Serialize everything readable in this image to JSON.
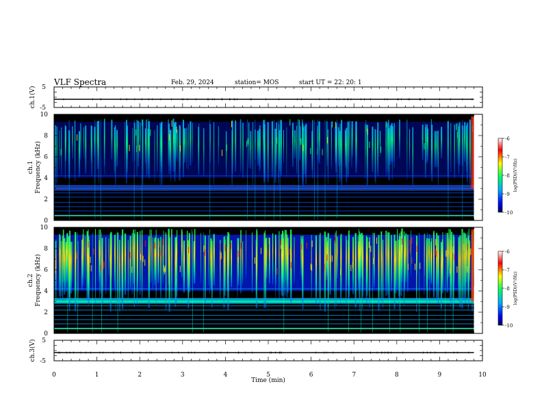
{
  "header": {
    "title": "VLF Spectra",
    "date": "Feb. 29, 2024",
    "station": "station= MOS",
    "start": "start  UT =   22: 20: 1"
  },
  "chart_data": [
    {
      "type": "line",
      "panel": "ch1-voltage",
      "ylabel": "ch.1(V)",
      "ylim": [
        -5,
        5
      ],
      "yticks": [
        "5",
        "-5"
      ],
      "xlim": [
        0,
        10
      ],
      "series": [
        {
          "x": [
            0,
            9.8
          ],
          "values": [
            0,
            0
          ]
        }
      ]
    },
    {
      "type": "heatmap",
      "panel": "ch1-spectrogram",
      "ylabel": "ch.1 Frequency (kHz)",
      "ylim": [
        0,
        10
      ],
      "yticks": [
        "0",
        "2",
        "4",
        "6",
        "8",
        "10"
      ],
      "xlim": [
        0,
        10
      ],
      "data_extent_min": 9.8,
      "colorbar": {
        "label": "log(PSD)(V²/Hz)",
        "range": [
          -10,
          -6
        ],
        "ticks": [
          "-6",
          "-7",
          "-8",
          "-9",
          "-10"
        ]
      }
    },
    {
      "type": "heatmap",
      "panel": "ch2-spectrogram",
      "ylabel": "ch.2 Frequency (kHz)",
      "ylim": [
        0,
        10
      ],
      "yticks": [
        "0",
        "2",
        "4",
        "6",
        "8",
        "10"
      ],
      "xlim": [
        0,
        10
      ],
      "data_extent_min": 9.8,
      "colorbar": {
        "label": "log(PSD)(V²/Hz)",
        "range": [
          -10,
          -6
        ],
        "ticks": [
          "-6",
          "-7",
          "-8",
          "-9",
          "-10"
        ]
      }
    },
    {
      "type": "line",
      "panel": "ch3-voltage",
      "ylabel": "ch.3(V)",
      "ylim": [
        -5,
        5
      ],
      "yticks": [
        "5",
        "-5"
      ],
      "xlim": [
        0,
        10
      ],
      "xlabel": "Time  (min)",
      "xticks": [
        "0",
        "1",
        "2",
        "3",
        "4",
        "5",
        "6",
        "7",
        "8",
        "9",
        "10"
      ],
      "series": [
        {
          "x": [
            0,
            9.8
          ],
          "values": [
            0,
            0
          ]
        }
      ]
    }
  ],
  "colors": {
    "spectrogram_background": "#000000",
    "colormap": [
      "#00005a",
      "#0000ff",
      "#00aaff",
      "#00ff66",
      "#ffff00",
      "#ff0000",
      "#ffffff"
    ]
  }
}
